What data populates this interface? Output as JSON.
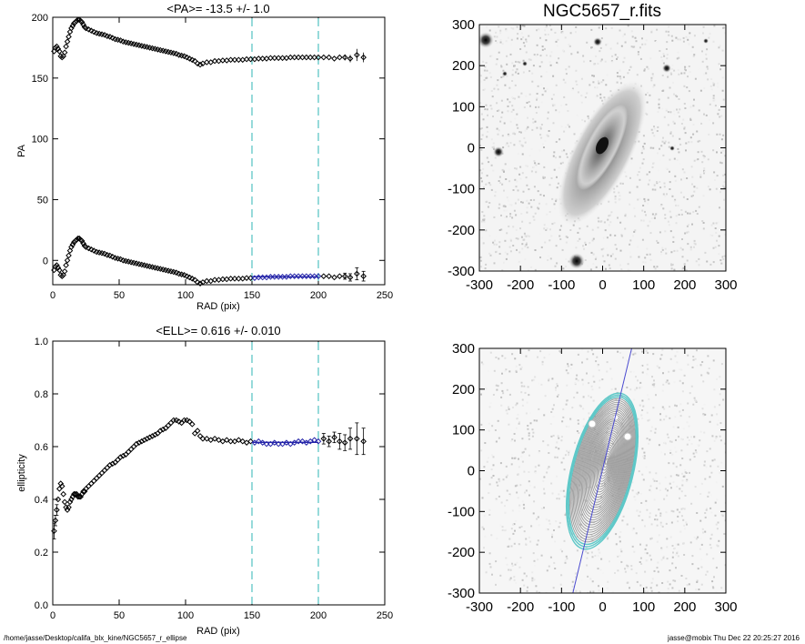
{
  "chart_data": [
    {
      "type": "scatter",
      "title": "<PA>= -13.5 +/-   1.0",
      "xlabel": "RAD (pix)",
      "ylabel": "PA",
      "xlim": [
        0,
        250
      ],
      "ylim": [
        -20,
        200
      ],
      "xticks": [
        0,
        50,
        100,
        150,
        200,
        250
      ],
      "yticks": [
        0,
        50,
        100,
        150,
        200
      ],
      "vlines": [
        150,
        200
      ],
      "fit": {
        "x": [
          150,
          200
        ],
        "y": -13.5
      },
      "series": [
        {
          "x": [
            1,
            2,
            3,
            4,
            5,
            6,
            7,
            8,
            9,
            10,
            11,
            12,
            13,
            14,
            15,
            16,
            17,
            18,
            19,
            20,
            21,
            22,
            23,
            24,
            25,
            27,
            29,
            31,
            33,
            35,
            37,
            39,
            41,
            43,
            45,
            47,
            49,
            51,
            53,
            55,
            57,
            59,
            61,
            63,
            65,
            67,
            69,
            71,
            73,
            75,
            77,
            79,
            81,
            83,
            85,
            87,
            89,
            91,
            93,
            95,
            97,
            99,
            101,
            103,
            105,
            107,
            109,
            111,
            113,
            116,
            119,
            122,
            125,
            128,
            131,
            134,
            137,
            140,
            143,
            146,
            149,
            152,
            155,
            158,
            161,
            164,
            167,
            170,
            173,
            176,
            179,
            182,
            185,
            188,
            191,
            194,
            197,
            200,
            204,
            208,
            212,
            216,
            220,
            224,
            229,
            234
          ],
          "y": [
            -8,
            -5,
            -4,
            -6,
            -8,
            -12,
            -13,
            -12,
            -9,
            -4,
            0,
            4,
            8,
            11,
            13,
            15,
            16,
            17,
            18,
            18,
            17,
            16,
            14,
            12,
            11,
            10,
            9,
            8,
            7,
            6.5,
            6,
            5.5,
            4.5,
            4,
            3,
            2,
            1.5,
            1,
            0,
            -0.5,
            -1,
            -1.5,
            -2,
            -2.5,
            -3,
            -3.5,
            -4,
            -4.5,
            -5,
            -5.5,
            -6,
            -6.5,
            -7,
            -7.5,
            -8,
            -8.5,
            -9,
            -9.5,
            -10,
            -11,
            -11.5,
            -12,
            -13,
            -14,
            -15,
            -16,
            -18,
            -19,
            -18,
            -17,
            -17,
            -16,
            -16,
            -15.5,
            -15.5,
            -15,
            -15,
            -15,
            -15,
            -14.5,
            -14.5,
            -14.5,
            -14,
            -14,
            -14,
            -13.5,
            -13.5,
            -13.5,
            -13.5,
            -13.5,
            -13,
            -13,
            -13,
            -13,
            -13,
            -13,
            -13,
            -13,
            -13,
            -13,
            -14,
            -13,
            -13,
            -14,
            -11,
            -13
          ],
          "err": [
            0.3,
            0.3,
            0.3,
            0.3,
            0.3,
            0.3,
            0.3,
            0.3,
            0.3,
            0.3,
            0.3,
            0.3,
            0.3,
            0.3,
            0.3,
            0.3,
            0.3,
            0.3,
            0.3,
            0.3,
            0.3,
            0.3,
            0.3,
            0.3,
            0.3,
            0.3,
            0.3,
            0.3,
            0.3,
            0.3,
            0.3,
            0.3,
            0.3,
            0.3,
            0.3,
            0.3,
            0.3,
            0.3,
            0.3,
            0.3,
            0.3,
            0.3,
            0.3,
            0.3,
            0.3,
            0.3,
            0.3,
            0.3,
            0.3,
            0.3,
            0.3,
            0.3,
            0.3,
            0.3,
            0.3,
            0.3,
            0.3,
            0.3,
            0.3,
            0.3,
            0.3,
            0.3,
            0.3,
            0.3,
            0.3,
            0.3,
            0.3,
            0.3,
            0.3,
            0.4,
            0.4,
            0.4,
            0.4,
            0.4,
            0.4,
            0.4,
            0.4,
            0.5,
            0.5,
            0.5,
            0.5,
            0.5,
            0.5,
            0.6,
            0.6,
            0.6,
            0.6,
            0.7,
            0.7,
            0.7,
            0.8,
            0.8,
            0.8,
            0.9,
            0.9,
            1,
            1,
            1,
            1.5,
            1.5,
            2,
            2,
            2.5,
            3,
            5,
            4
          ]
        }
      ]
    },
    {
      "type": "scatter",
      "title": "<ELL>= 0.616 +/-  0.010",
      "xlabel": "RAD (pix)",
      "ylabel": "ellipticity",
      "xlim": [
        0,
        250
      ],
      "ylim": [
        0,
        1
      ],
      "xticks": [
        0,
        50,
        100,
        150,
        200,
        250
      ],
      "yticks": [
        0.0,
        0.2,
        0.4,
        0.6,
        0.8,
        1.0
      ],
      "vlines": [
        150,
        200
      ],
      "fit": {
        "x": [
          150,
          200
        ],
        "y": 0.616
      },
      "series": [
        {
          "x": [
            1,
            2,
            3,
            4,
            5,
            6,
            7,
            8,
            9,
            10,
            11,
            12,
            13,
            14,
            15,
            16,
            17,
            18,
            19,
            20,
            21,
            22,
            23,
            24,
            25,
            27,
            29,
            31,
            33,
            35,
            37,
            39,
            41,
            43,
            45,
            47,
            49,
            51,
            53,
            55,
            57,
            59,
            61,
            63,
            65,
            67,
            69,
            71,
            73,
            75,
            77,
            79,
            81,
            83,
            85,
            87,
            89,
            91,
            93,
            95,
            97,
            99,
            101,
            103,
            105,
            107,
            109,
            111,
            113,
            116,
            119,
            122,
            125,
            128,
            131,
            134,
            137,
            140,
            143,
            146,
            149,
            152,
            155,
            158,
            161,
            164,
            167,
            170,
            173,
            176,
            179,
            182,
            185,
            188,
            191,
            194,
            197,
            200,
            204,
            208,
            212,
            216,
            220,
            224,
            229,
            234
          ],
          "y": [
            0.28,
            0.32,
            0.36,
            0.4,
            0.44,
            0.46,
            0.45,
            0.42,
            0.39,
            0.37,
            0.36,
            0.37,
            0.39,
            0.4,
            0.41,
            0.42,
            0.42,
            0.42,
            0.41,
            0.41,
            0.41,
            0.42,
            0.43,
            0.43,
            0.44,
            0.45,
            0.46,
            0.47,
            0.48,
            0.49,
            0.5,
            0.51,
            0.52,
            0.53,
            0.535,
            0.54,
            0.55,
            0.56,
            0.565,
            0.57,
            0.58,
            0.59,
            0.6,
            0.61,
            0.615,
            0.62,
            0.625,
            0.63,
            0.635,
            0.64,
            0.645,
            0.65,
            0.66,
            0.665,
            0.67,
            0.68,
            0.69,
            0.7,
            0.7,
            0.695,
            0.69,
            0.7,
            0.7,
            0.695,
            0.685,
            0.65,
            0.66,
            0.64,
            0.63,
            0.63,
            0.625,
            0.63,
            0.625,
            0.62,
            0.625,
            0.62,
            0.62,
            0.625,
            0.62,
            0.615,
            0.62,
            0.615,
            0.62,
            0.615,
            0.61,
            0.61,
            0.615,
            0.61,
            0.61,
            0.615,
            0.61,
            0.615,
            0.62,
            0.62,
            0.615,
            0.62,
            0.625,
            0.62,
            0.63,
            0.62,
            0.635,
            0.62,
            0.615,
            0.63,
            0.63,
            0.62
          ],
          "err": [
            0.03,
            0.02,
            0.02,
            0.01,
            0.01,
            0.01,
            0.01,
            0.01,
            0.01,
            0.01,
            0.01,
            0.01,
            0.01,
            0.01,
            0.01,
            0.01,
            0.01,
            0.01,
            0.01,
            0.01,
            0.01,
            0.01,
            0.005,
            0.005,
            0.005,
            0.005,
            0.005,
            0.005,
            0.005,
            0.005,
            0.005,
            0.005,
            0.005,
            0.005,
            0.005,
            0.005,
            0.005,
            0.005,
            0.005,
            0.005,
            0.005,
            0.005,
            0.005,
            0.005,
            0.005,
            0.005,
            0.005,
            0.005,
            0.005,
            0.005,
            0.005,
            0.005,
            0.005,
            0.005,
            0.005,
            0.005,
            0.005,
            0.005,
            0.005,
            0.005,
            0.005,
            0.005,
            0.005,
            0.005,
            0.005,
            0.005,
            0.005,
            0.005,
            0.005,
            0.005,
            0.005,
            0.005,
            0.005,
            0.005,
            0.005,
            0.005,
            0.005,
            0.005,
            0.005,
            0.005,
            0.005,
            0.005,
            0.005,
            0.005,
            0.005,
            0.006,
            0.006,
            0.006,
            0.006,
            0.007,
            0.007,
            0.007,
            0.008,
            0.008,
            0.008,
            0.009,
            0.01,
            0.01,
            0.02,
            0.02,
            0.02,
            0.03,
            0.03,
            0.04,
            0.06,
            0.05
          ]
        }
      ]
    },
    {
      "type": "heatmap",
      "title": "NGC5657_r.fits",
      "xlim": [
        -300,
        300
      ],
      "ylim": [
        -300,
        300
      ],
      "xticks": [
        -300,
        -200,
        -100,
        0,
        100,
        200,
        300
      ],
      "yticks": [
        -300,
        -200,
        -100,
        0,
        100,
        200,
        300
      ]
    },
    {
      "type": "heatmap",
      "title": "",
      "xlim": [
        -300,
        300
      ],
      "ylim": [
        -300,
        300
      ],
      "xticks": [
        -300,
        -200,
        -100,
        0,
        100,
        200,
        300
      ],
      "yticks": [
        -300,
        -200,
        -100,
        0,
        100,
        200,
        300
      ],
      "pa_line": -13.5
    }
  ],
  "footer": {
    "path": "/home/jasse/Desktop/califa_blx_kine/NGC5657_r_ellipse",
    "stamp": "jasse@mobix  Thu Dec 22 20:25:27 2016"
  },
  "colors": {
    "vline": "#5fc6c6",
    "fit": "#2323a8",
    "galaxy": "#606060",
    "contour": "#9a9a9a",
    "contour_outer": "#5ec8c8"
  }
}
